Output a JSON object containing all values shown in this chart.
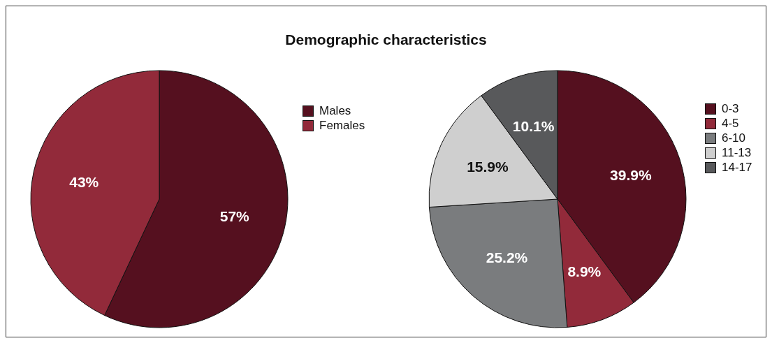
{
  "chart_data": [
    {
      "type": "pie",
      "title": "Demographic characteristics",
      "categories": [
        "Males",
        "Females"
      ],
      "values": [
        57,
        43
      ],
      "colors": [
        "#55101f",
        "#922a3a"
      ],
      "value_labels": [
        "57%",
        "43%"
      ],
      "legend": "right"
    },
    {
      "type": "pie",
      "categories": [
        "0-3",
        "4-5",
        "6-10",
        "11-13",
        "14-17"
      ],
      "values": [
        39.9,
        8.9,
        25.2,
        15.9,
        10.1
      ],
      "colors": [
        "#55101f",
        "#922a3a",
        "#7a7c7e",
        "#cfcfcf",
        "#58595b"
      ],
      "value_labels": [
        "39.9%",
        "8.9%",
        "25.2%",
        "15.9%",
        "10.1%"
      ],
      "legend": "right"
    }
  ]
}
